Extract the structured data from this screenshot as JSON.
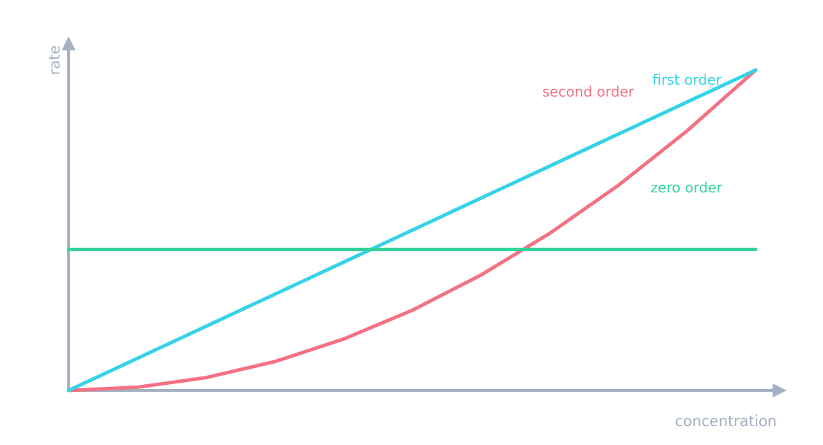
{
  "chart_data": {
    "type": "line",
    "title": "",
    "xlabel": "concentration",
    "ylabel": "rate",
    "xlim": [
      0,
      1
    ],
    "ylim": [
      0,
      1
    ],
    "grid": false,
    "legend": "inline labels near line ends",
    "axis_color": "#a3b1c2",
    "series": [
      {
        "key": "zero",
        "name": "zero order",
        "color": "#34d399",
        "x": [
          0,
          1
        ],
        "y": [
          0.44,
          0.44
        ]
      },
      {
        "key": "first",
        "name": "first order",
        "color": "#34d3e6",
        "x": [
          0,
          1
        ],
        "y": [
          0,
          1
        ]
      },
      {
        "key": "second",
        "name": "second order",
        "color": "#f47184",
        "x": [
          0,
          0.1,
          0.2,
          0.3,
          0.4,
          0.5,
          0.6,
          0.7,
          0.8,
          0.9,
          1.0
        ],
        "y": [
          0,
          0.01,
          0.04,
          0.09,
          0.16,
          0.25,
          0.36,
          0.49,
          0.64,
          0.81,
          1.0
        ]
      }
    ]
  }
}
